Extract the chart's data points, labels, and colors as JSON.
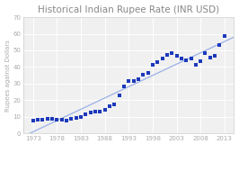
{
  "title": "Historical Indian Rupee Rate (INR USD)",
  "ylabel": "Rupees against Dollars",
  "years": [
    1973,
    1974,
    1975,
    1976,
    1977,
    1978,
    1979,
    1980,
    1981,
    1982,
    1983,
    1984,
    1985,
    1986,
    1987,
    1988,
    1989,
    1990,
    1991,
    1992,
    1993,
    1994,
    1995,
    1996,
    1997,
    1998,
    1999,
    2000,
    2001,
    2002,
    2003,
    2004,
    2005,
    2006,
    2007,
    2008,
    2009,
    2010,
    2011,
    2012,
    2013
  ],
  "rupees": [
    7.7,
    8.1,
    8.4,
    8.9,
    8.7,
    8.2,
    8.1,
    7.9,
    8.7,
    9.5,
    10.1,
    11.4,
    12.4,
    13.1,
    13.0,
    14.0,
    16.2,
    17.5,
    22.7,
    28.1,
    31.4,
    31.4,
    32.4,
    35.4,
    36.3,
    41.3,
    43.1,
    44.9,
    47.2,
    48.6,
    46.6,
    45.3,
    44.1,
    45.3,
    41.3,
    43.5,
    48.4,
    45.7,
    46.7,
    53.4,
    58.6
  ],
  "dot_color": "#1c39bb",
  "line_color": "#9ab0e8",
  "fig_bg_color": "#ffffff",
  "plot_bg_color": "#f0f0f0",
  "grid_color": "#ffffff",
  "title_color": "#888888",
  "tick_color": "#aaaaaa",
  "spine_color": "#cccccc",
  "ylim": [
    0,
    70
  ],
  "yticks": [
    0,
    10,
    20,
    30,
    40,
    50,
    60,
    70
  ],
  "xticks": [
    1973,
    1978,
    1983,
    1988,
    1993,
    1998,
    2003,
    2008,
    2013
  ],
  "xlim_min": 1971,
  "xlim_max": 2015,
  "title_fontsize": 7.5,
  "label_fontsize": 5.0,
  "tick_fontsize": 5.0,
  "legend_fontsize": 5.0
}
